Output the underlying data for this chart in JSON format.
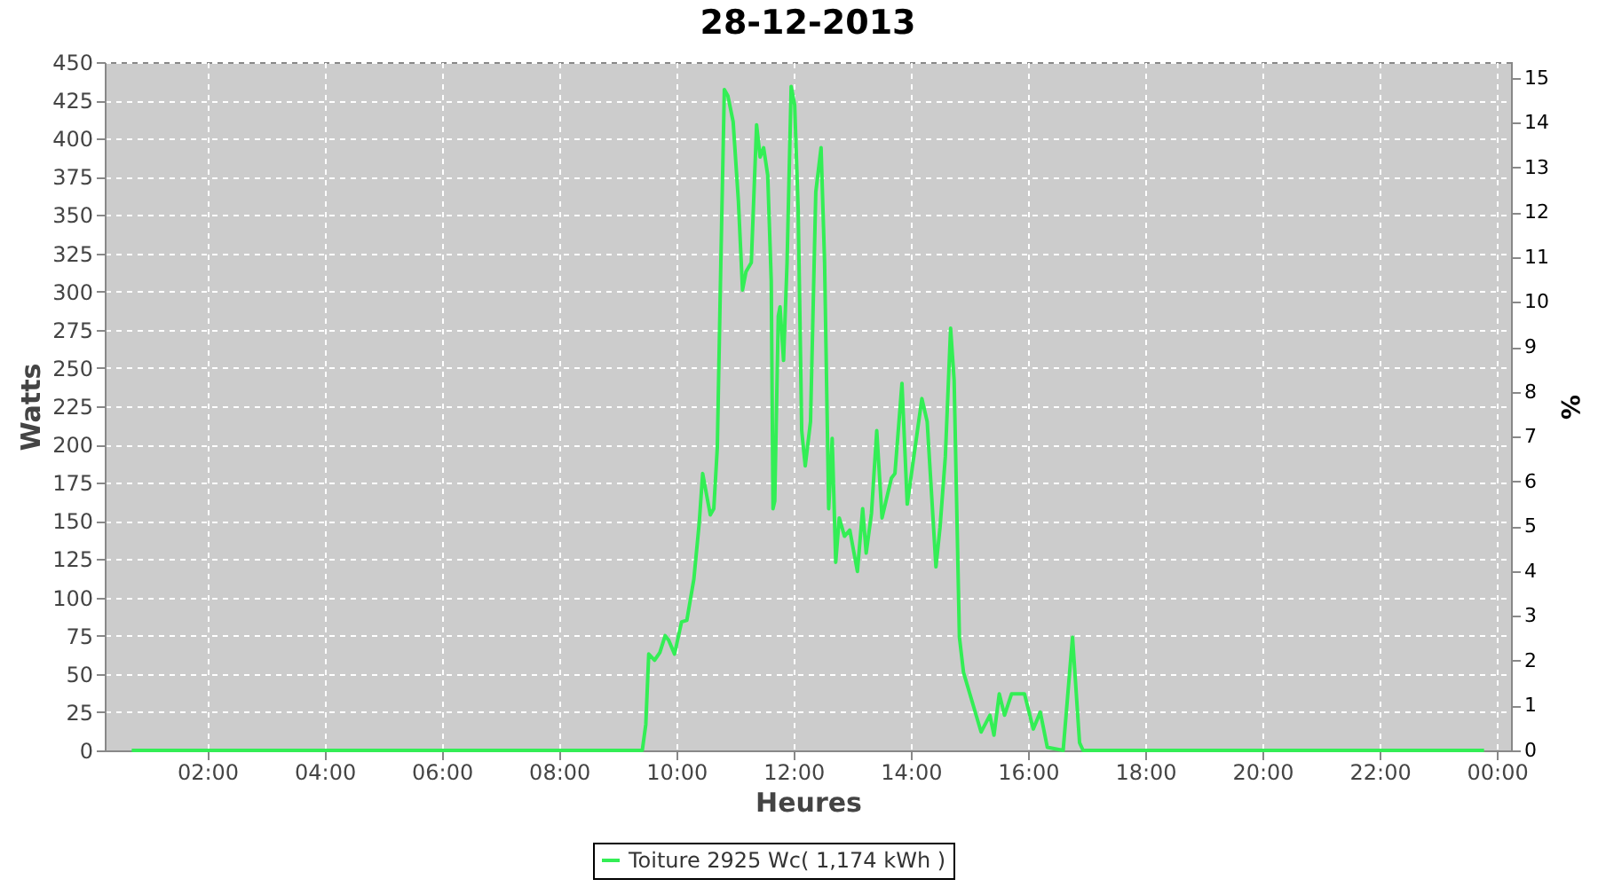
{
  "chart_data": {
    "type": "line",
    "title": "28-12-2013",
    "xlabel": "Heures",
    "ylabel": "Watts",
    "y2label": "%",
    "xlim": [
      0.25,
      24.24
    ],
    "xticks": [
      {
        "value": 2,
        "label": "02:00"
      },
      {
        "value": 4,
        "label": "04:00"
      },
      {
        "value": 6,
        "label": "06:00"
      },
      {
        "value": 8,
        "label": "08:00"
      },
      {
        "value": 10,
        "label": "10:00"
      },
      {
        "value": 12,
        "label": "12:00"
      },
      {
        "value": 14,
        "label": "14:00"
      },
      {
        "value": 16,
        "label": "16:00"
      },
      {
        "value": 18,
        "label": "18:00"
      },
      {
        "value": 20,
        "label": "20:00"
      },
      {
        "value": 22,
        "label": "22:00"
      },
      {
        "value": 24,
        "label": "00:00"
      }
    ],
    "ylim": [
      0,
      450
    ],
    "yticks": [
      0,
      25,
      50,
      75,
      100,
      125,
      150,
      175,
      200,
      225,
      250,
      275,
      300,
      325,
      350,
      375,
      400,
      425,
      450
    ],
    "y2lim": [
      0,
      15.35
    ],
    "y2ticks": [
      0,
      1,
      2,
      3,
      4,
      5,
      6,
      7,
      8,
      9,
      10,
      11,
      12,
      13,
      14,
      15
    ],
    "grid": true,
    "legend": "bottom",
    "marker": "none",
    "line_style": "solid",
    "series": [
      {
        "name": "Toiture 2925 Wc( 1,174 kWh )",
        "color": "#33ee55",
        "x": [
          0.71,
          9.42,
          9.48,
          9.53,
          9.63,
          9.72,
          9.81,
          9.87,
          9.97,
          10.09,
          10.18,
          10.3,
          10.39,
          10.45,
          10.58,
          10.64,
          10.7,
          10.76,
          10.82,
          10.88,
          10.97,
          11.06,
          11.13,
          11.19,
          11.28,
          11.37,
          11.43,
          11.49,
          11.56,
          11.62,
          11.65,
          11.68,
          11.74,
          11.77,
          11.83,
          11.89,
          11.96,
          12.02,
          12.08,
          12.14,
          12.2,
          12.29,
          12.38,
          12.47,
          12.53,
          12.6,
          12.66,
          12.72,
          12.78,
          12.87,
          12.96,
          13.09,
          13.18,
          13.24,
          13.33,
          13.42,
          13.51,
          13.67,
          13.73,
          13.85,
          13.94,
          14.19,
          14.28,
          14.43,
          14.5,
          14.59,
          14.68,
          14.74,
          14.83,
          14.9,
          15.2,
          15.35,
          15.42,
          15.51,
          15.6,
          15.72,
          15.94,
          16.09,
          16.21,
          16.33,
          16.6,
          16.76,
          16.88,
          16.94,
          23.78
        ],
        "values": [
          0,
          0,
          17,
          63,
          59,
          64,
          75,
          72,
          63,
          84,
          85,
          112,
          148,
          181,
          154,
          158,
          198,
          319,
          432,
          428,
          411,
          359,
          301,
          313,
          319,
          409,
          388,
          394,
          376,
          307,
          158,
          163,
          284,
          290,
          255,
          319,
          434,
          422,
          353,
          209,
          186,
          215,
          365,
          394,
          319,
          158,
          204,
          123,
          152,
          140,
          144,
          117,
          158,
          129,
          155,
          209,
          152,
          178,
          181,
          240,
          161,
          230,
          215,
          120,
          146,
          192,
          276,
          242,
          74,
          51,
          12,
          23,
          10,
          37,
          23,
          37,
          37,
          14,
          25,
          2,
          0,
          74,
          5,
          0,
          0
        ]
      }
    ]
  }
}
